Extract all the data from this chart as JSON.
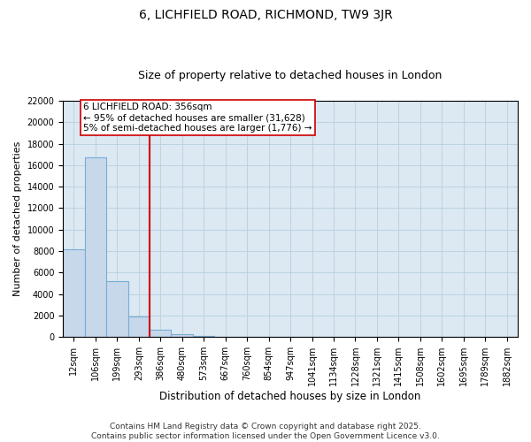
{
  "title1": "6, LICHFIELD ROAD, RICHMOND, TW9 3JR",
  "title2": "Size of property relative to detached houses in London",
  "xlabel": "Distribution of detached houses by size in London",
  "ylabel": "Number of detached properties",
  "categories": [
    "12sqm",
    "106sqm",
    "199sqm",
    "293sqm",
    "386sqm",
    "480sqm",
    "573sqm",
    "667sqm",
    "760sqm",
    "854sqm",
    "947sqm",
    "1041sqm",
    "1134sqm",
    "1228sqm",
    "1321sqm",
    "1415sqm",
    "1508sqm",
    "1602sqm",
    "1695sqm",
    "1789sqm",
    "1882sqm"
  ],
  "values": [
    8200,
    16700,
    5200,
    1900,
    700,
    280,
    100,
    45,
    0,
    0,
    0,
    0,
    0,
    0,
    0,
    0,
    0,
    0,
    0,
    0,
    0
  ],
  "bar_color": "#c8d8eb",
  "bar_edge_color": "#7aadd4",
  "red_line_x": 3.5,
  "red_line_color": "#cc0000",
  "annotation_text": "6 LICHFIELD ROAD: 356sqm\n← 95% of detached houses are smaller (31,628)\n5% of semi-detached houses are larger (1,776) →",
  "ylim": [
    0,
    22000
  ],
  "yticks": [
    0,
    2000,
    4000,
    6000,
    8000,
    10000,
    12000,
    14000,
    16000,
    18000,
    20000,
    22000
  ],
  "grid_color": "#b8cfe0",
  "background_color": "#dce8f2",
  "footer": "Contains HM Land Registry data © Crown copyright and database right 2025.\nContains public sector information licensed under the Open Government Licence v3.0.",
  "title1_fontsize": 10,
  "title2_fontsize": 9,
  "xlabel_fontsize": 8.5,
  "ylabel_fontsize": 8,
  "tick_fontsize": 7,
  "annotation_fontsize": 7.5,
  "footer_fontsize": 6.5
}
